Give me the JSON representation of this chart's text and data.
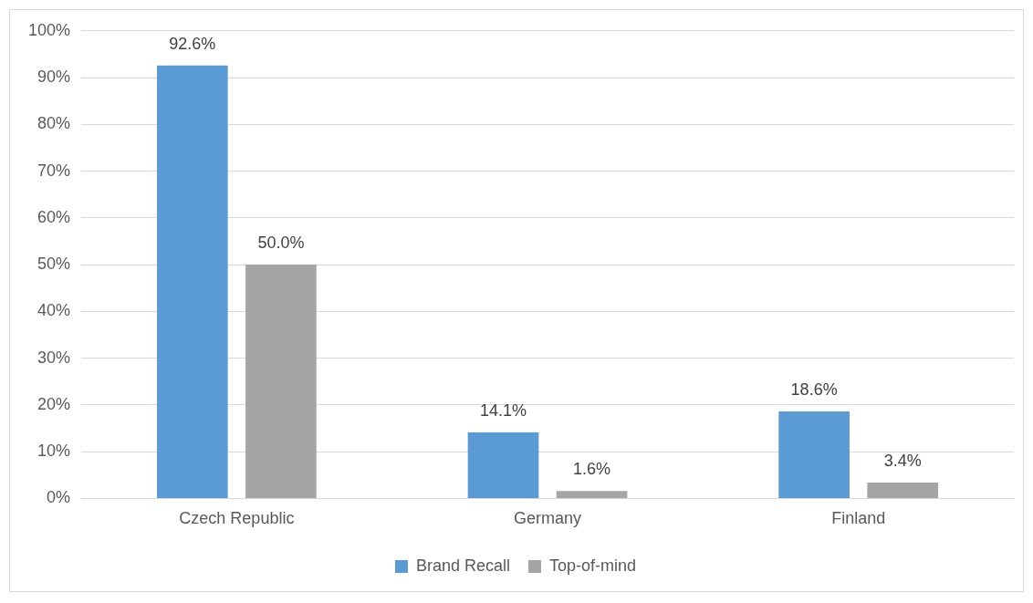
{
  "chart_data": {
    "type": "bar",
    "categories": [
      "Czech Republic",
      "Germany",
      "Finland"
    ],
    "series": [
      {
        "name": "Brand Recall",
        "color": "#5b9bd5",
        "values": [
          92.6,
          14.1,
          18.6
        ],
        "value_labels": [
          "92.6%",
          "14.1%",
          "18.6%"
        ]
      },
      {
        "name": "Top-of-mind",
        "color": "#a5a5a5",
        "values": [
          50.0,
          1.6,
          3.4
        ],
        "value_labels": [
          "50.0%",
          "1.6%",
          "3.4%"
        ]
      }
    ],
    "ylim": [
      0,
      100
    ],
    "yticks": [
      {
        "value": 0,
        "label": "0%"
      },
      {
        "value": 10,
        "label": "10%"
      },
      {
        "value": 20,
        "label": "20%"
      },
      {
        "value": 30,
        "label": "30%"
      },
      {
        "value": 40,
        "label": "40%"
      },
      {
        "value": 50,
        "label": "50%"
      },
      {
        "value": 60,
        "label": "60%"
      },
      {
        "value": 70,
        "label": "70%"
      },
      {
        "value": 80,
        "label": "80%"
      },
      {
        "value": 90,
        "label": "90%"
      },
      {
        "value": 100,
        "label": "100%"
      }
    ],
    "grid": "y",
    "legend": "bottom"
  }
}
